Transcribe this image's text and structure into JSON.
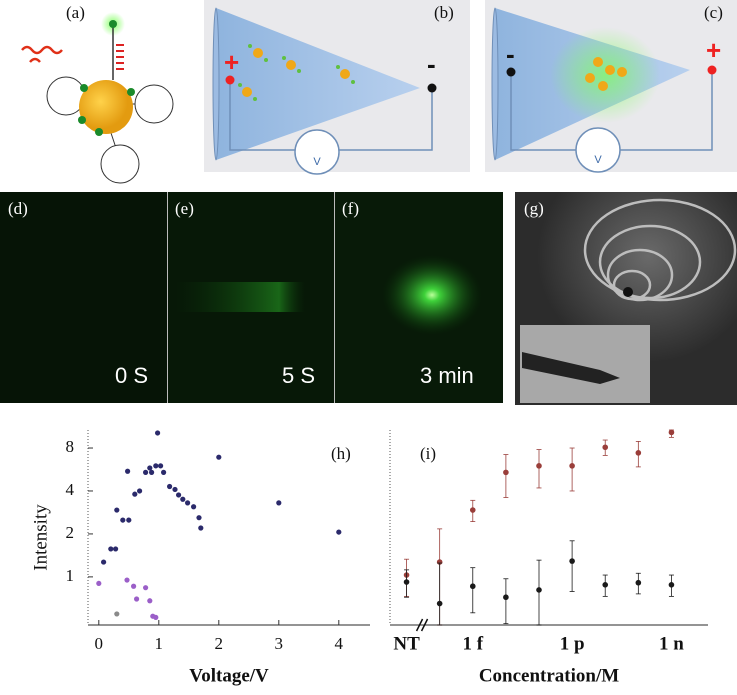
{
  "panels": {
    "a": {
      "label": "(a)"
    },
    "b": {
      "label": "(b)",
      "left_sign": "+",
      "right_sign": "-",
      "meter": "V"
    },
    "c": {
      "label": "(c)",
      "left_sign": "-",
      "right_sign": "+",
      "meter": "V"
    },
    "d": {
      "label": "(d)",
      "caption": "0 S"
    },
    "e": {
      "label": "(e)",
      "caption": "5 S"
    },
    "f": {
      "label": "(f)",
      "caption": "3 min"
    },
    "g": {
      "label": "(g)"
    }
  },
  "chart_data": [
    {
      "type": "scatter",
      "label": "(h)",
      "xlabel": "Voltage/V",
      "ylabel": "Intensity",
      "xlim": [
        -0.18,
        4.52
      ],
      "ylim": [
        0.46,
        10.7
      ],
      "yscale": "log",
      "xticks": [
        0,
        1,
        2,
        3,
        4
      ],
      "yticks": [
        1,
        2,
        4,
        8
      ],
      "series": [
        {
          "color": "#2b2a6b",
          "x": [
            0.08,
            0.2,
            0.28,
            0.3,
            0.4,
            0.5,
            0.48,
            0.6,
            0.68,
            0.78,
            0.85,
            0.88,
            0.95,
            0.98,
            1.03,
            1.08,
            1.18,
            1.27,
            1.33,
            1.4,
            1.48,
            1.58,
            1.67,
            1.7,
            2.0,
            3.0,
            4.0
          ],
          "y": [
            1.27,
            1.57,
            1.57,
            2.94,
            2.5,
            2.5,
            5.5,
            3.8,
            4.0,
            5.4,
            5.8,
            5.4,
            6.0,
            10.2,
            6.0,
            5.4,
            4.3,
            4.1,
            3.75,
            3.5,
            3.3,
            3.1,
            2.6,
            2.2,
            6.9,
            3.3,
            2.06
          ]
        },
        {
          "color": "#9b5fc8",
          "x": [
            0.0,
            0.47,
            0.58,
            0.63,
            0.78,
            0.85,
            0.9,
            0.95
          ],
          "y": [
            0.9,
            0.95,
            0.86,
            0.7,
            0.84,
            0.68,
            0.53,
            0.52
          ]
        },
        {
          "color": "#8a8a8a",
          "x": [
            0.3
          ],
          "y": [
            0.55
          ]
        }
      ]
    },
    {
      "type": "errorbar",
      "label": "(i)",
      "xlabel": "Concentration/M",
      "categories": [
        "NT",
        null,
        "1 f",
        null,
        null,
        "1 p",
        null,
        null,
        "1 n"
      ],
      "ylim": [
        0.46,
        10.7
      ],
      "yscale": "log",
      "series": [
        {
          "color": "#9a3e3a",
          "values": [
            1.03,
            1.27,
            2.94,
            5.4,
            6.0,
            6.0,
            8.1,
            7.4,
            10.3
          ],
          "errors": [
            0.3,
            0.9,
            0.5,
            1.8,
            1.8,
            2.0,
            1.0,
            1.5,
            0.8
          ]
        },
        {
          "color": "#1a1a1a",
          "values": [
            0.92,
            0.65,
            0.86,
            0.72,
            0.81,
            1.29,
            0.88,
            0.91,
            0.88
          ],
          "errors": [
            0.2,
            0.6,
            0.3,
            0.25,
            0.5,
            0.5,
            0.15,
            0.15,
            0.15
          ]
        }
      ]
    }
  ]
}
